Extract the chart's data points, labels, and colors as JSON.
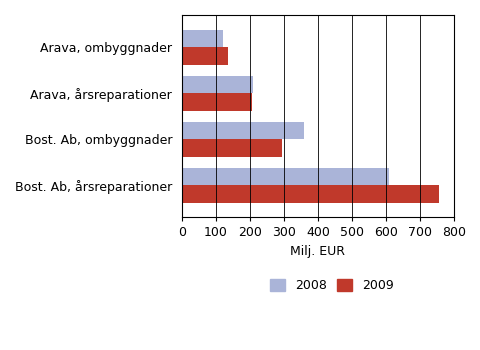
{
  "categories": [
    "Arava, ombyggnader",
    "Arava, årsreparationer",
    "Bost. Ab, ombyggnader",
    "Bost. Ab, årsreparationer"
  ],
  "values_2008": [
    120,
    210,
    360,
    610
  ],
  "values_2009": [
    135,
    205,
    295,
    755
  ],
  "color_2008": "#aab4d8",
  "color_2009": "#c0392b",
  "xlabel": "Milj. EUR",
  "xlim": [
    0,
    800
  ],
  "xticks": [
    0,
    100,
    200,
    300,
    400,
    500,
    600,
    700,
    800
  ],
  "legend_2008": "2008",
  "legend_2009": "2009",
  "bar_height": 0.38,
  "grid_color": "#000000",
  "background_color": "#ffffff",
  "label_fontsize": 9,
  "tick_fontsize": 9,
  "xlabel_fontsize": 9
}
